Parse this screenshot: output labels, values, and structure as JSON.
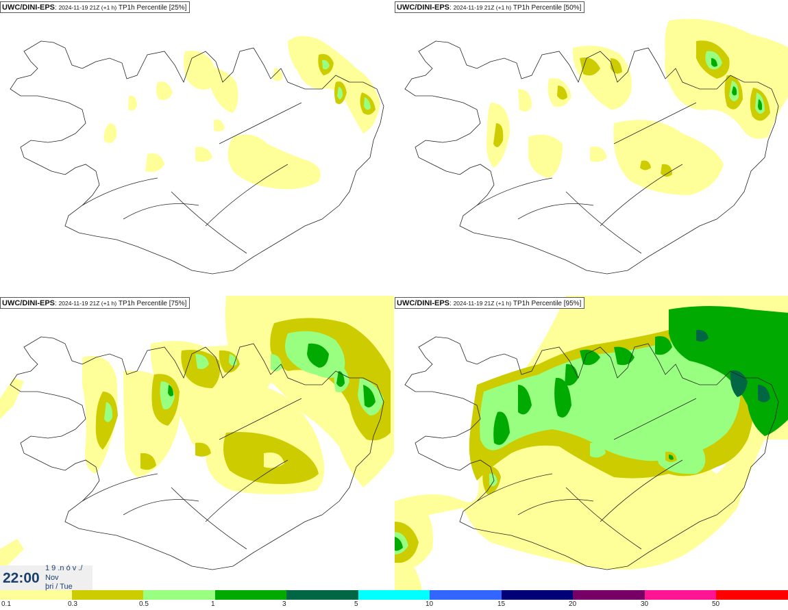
{
  "panels": [
    {
      "model": "UWC/DINI-EPS",
      "run": "2024-11-19 21Z (+1 h)",
      "field": "TP1h Percentile [25%]"
    },
    {
      "model": "UWC/DINI-EPS",
      "run": "2024-11-19 21Z (+1 h)",
      "field": "TP1h Percentile [50%]"
    },
    {
      "model": "UWC/DINI-EPS",
      "run": "2024-11-19 21Z (+1 h)",
      "field": "TP1h Percentile [75%]"
    },
    {
      "model": "UWC/DINI-EPS",
      "run": "2024-11-19 21Z (+1 h)",
      "field": "TP1h Percentile [95%]"
    }
  ],
  "valid_time": {
    "clock": "22:00",
    "day_line": "1 9 .n ó v ./",
    "month_line": "Nov",
    "weekday_line": "þri / Tue"
  },
  "legend": {
    "colors": [
      "#ffff99",
      "#cccc00",
      "#99ff80",
      "#00aa00",
      "#006644",
      "#00ffff",
      "#3366ff",
      "#000077",
      "#770066",
      "#ff1493",
      "#ff0000"
    ],
    "labels": [
      "0.1",
      "0.3",
      "0.5",
      "1",
      "3",
      "5",
      "10",
      "15",
      "20",
      "30",
      "50"
    ]
  }
}
